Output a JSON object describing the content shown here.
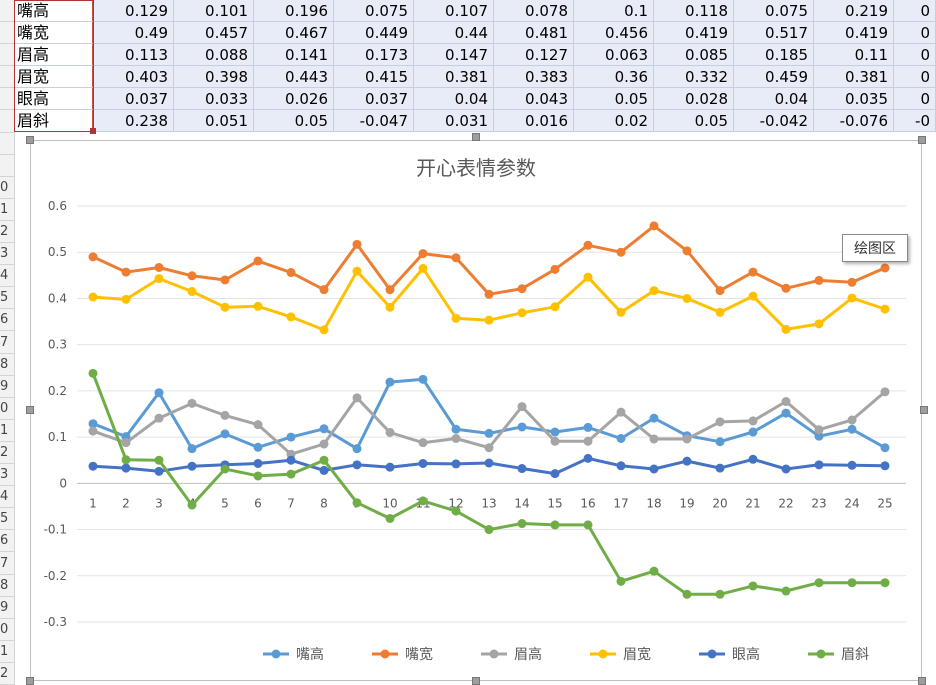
{
  "table": {
    "rows": [
      {
        "label": "嘴高",
        "values": [
          "0.129",
          "0.101",
          "0.196",
          "0.075",
          "0.107",
          "0.078",
          "0.1",
          "0.118",
          "0.075",
          "0.219",
          "0"
        ]
      },
      {
        "label": "嘴宽",
        "values": [
          "0.49",
          "0.457",
          "0.467",
          "0.449",
          "0.44",
          "0.481",
          "0.456",
          "0.419",
          "0.517",
          "0.419",
          "0"
        ]
      },
      {
        "label": "眉高",
        "values": [
          "0.113",
          "0.088",
          "0.141",
          "0.173",
          "0.147",
          "0.127",
          "0.063",
          "0.085",
          "0.185",
          "0.11",
          "0"
        ]
      },
      {
        "label": "眉宽",
        "values": [
          "0.403",
          "0.398",
          "0.443",
          "0.415",
          "0.381",
          "0.383",
          "0.36",
          "0.332",
          "0.459",
          "0.381",
          "0"
        ]
      },
      {
        "label": "眼高",
        "values": [
          "0.037",
          "0.033",
          "0.026",
          "0.037",
          "0.04",
          "0.043",
          "0.05",
          "0.028",
          "0.04",
          "0.035",
          "0"
        ]
      },
      {
        "label": "眉斜",
        "values": [
          "0.238",
          "0.051",
          "0.05",
          "-0.047",
          "0.031",
          "0.016",
          "0.02",
          "0.05",
          "-0.042",
          "-0.076",
          "-0"
        ]
      }
    ]
  },
  "row_numbers": [
    "",
    "",
    "",
    "",
    "",
    "",
    "",
    "",
    "0",
    "1",
    "2",
    "3",
    "4",
    "5",
    "6",
    "7",
    "8",
    "9",
    "0",
    "1",
    "2",
    "3",
    "4",
    "5",
    "6",
    "7",
    "8",
    "9",
    "0",
    "1",
    "2"
  ],
  "tooltip": "绘图区",
  "chart_data": {
    "type": "line",
    "title": "开心表情参数",
    "x": [
      1,
      2,
      3,
      4,
      5,
      6,
      7,
      8,
      9,
      10,
      11,
      12,
      13,
      14,
      15,
      16,
      17,
      18,
      19,
      20,
      21,
      22,
      23,
      24,
      25
    ],
    "x_tick_labels": [
      "1",
      "2",
      "3",
      "4",
      "5",
      "6",
      "7",
      "8",
      "9",
      "10",
      "11",
      "12",
      "13",
      "14",
      "15",
      "16",
      "17",
      "18",
      "19",
      "20",
      "21",
      "22",
      "23",
      "24",
      "25"
    ],
    "ylim": [
      -0.3,
      0.6
    ],
    "y_ticks": [
      0.6,
      0.5,
      0.4,
      0.3,
      0.2,
      0.1,
      0,
      -0.1,
      -0.2,
      -0.3
    ],
    "y_tick_labels": [
      "0.6",
      "0.5",
      "0.4",
      "0.3",
      "0.2",
      "0.1",
      "0",
      "-0.1",
      "-0.2",
      "-0.3"
    ],
    "grid": true,
    "legend": "bottom",
    "series": [
      {
        "name": "嘴高",
        "color": "#5b9bd5",
        "values": [
          0.129,
          0.101,
          0.196,
          0.075,
          0.107,
          0.078,
          0.1,
          0.118,
          0.075,
          0.219,
          0.225,
          0.117,
          0.108,
          0.122,
          0.111,
          0.121,
          0.097,
          0.141,
          0.103,
          0.09,
          0.111,
          0.152,
          0.102,
          0.117,
          0.077
        ]
      },
      {
        "name": "嘴宽",
        "color": "#ed7d31",
        "values": [
          0.49,
          0.457,
          0.467,
          0.449,
          0.44,
          0.481,
          0.456,
          0.419,
          0.517,
          0.419,
          0.497,
          0.488,
          0.409,
          0.421,
          0.463,
          0.515,
          0.5,
          0.557,
          0.503,
          0.417,
          0.457,
          0.422,
          0.439,
          0.435,
          0.466
        ]
      },
      {
        "name": "眉高",
        "color": "#a5a5a5",
        "values": [
          0.113,
          0.088,
          0.141,
          0.173,
          0.147,
          0.127,
          0.063,
          0.085,
          0.185,
          0.11,
          0.088,
          0.097,
          0.077,
          0.166,
          0.091,
          0.091,
          0.154,
          0.096,
          0.096,
          0.133,
          0.135,
          0.177,
          0.116,
          0.137,
          0.198
        ]
      },
      {
        "name": "眉宽",
        "color": "#ffc000",
        "values": [
          0.403,
          0.398,
          0.443,
          0.415,
          0.381,
          0.383,
          0.36,
          0.332,
          0.459,
          0.381,
          0.465,
          0.357,
          0.353,
          0.369,
          0.382,
          0.446,
          0.37,
          0.417,
          0.4,
          0.37,
          0.405,
          0.333,
          0.345,
          0.401,
          0.377
        ]
      },
      {
        "name": "眼高",
        "color": "#4472c4",
        "values": [
          0.037,
          0.033,
          0.026,
          0.037,
          0.04,
          0.043,
          0.05,
          0.028,
          0.04,
          0.035,
          0.043,
          0.042,
          0.044,
          0.032,
          0.021,
          0.054,
          0.038,
          0.031,
          0.048,
          0.033,
          0.052,
          0.031,
          0.04,
          0.039,
          0.038
        ]
      },
      {
        "name": "眉斜",
        "color": "#70ad47",
        "values": [
          0.238,
          0.051,
          0.05,
          -0.047,
          0.031,
          0.016,
          0.02,
          0.05,
          -0.042,
          -0.076,
          -0.038,
          -0.06,
          -0.1,
          -0.087,
          -0.09,
          -0.09,
          -0.212,
          -0.19,
          -0.24,
          -0.24,
          -0.222,
          -0.233,
          -0.215,
          -0.215,
          -0.215
        ]
      }
    ]
  }
}
